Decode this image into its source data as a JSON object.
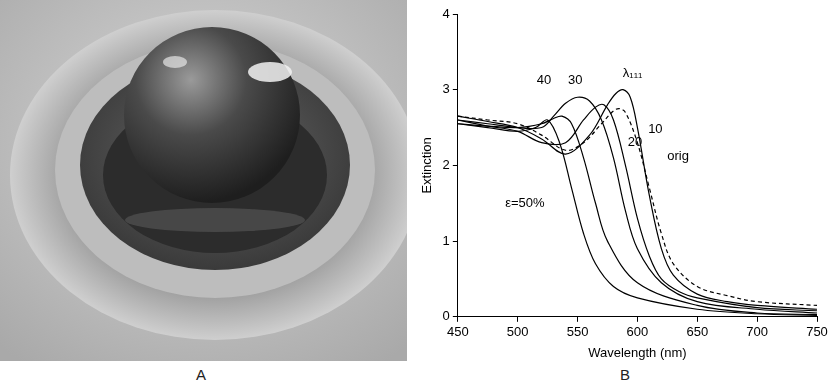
{
  "panel_labels": [
    "A",
    "B"
  ],
  "chart_data": {
    "type": "line",
    "x_label": "Wavelength (nm)",
    "y_label": "Extinction",
    "xlim": [
      450,
      750
    ],
    "xticks": [
      450,
      500,
      550,
      600,
      650,
      700,
      750
    ],
    "ylim": [
      0,
      4
    ],
    "yticks": [
      0,
      1,
      2,
      3,
      4
    ],
    "grid": false,
    "series": [
      {
        "name": "orig",
        "color": "#000000",
        "line_style": "dashed",
        "x": [
          450,
          475,
          500,
          520,
          540,
          555,
          570,
          580,
          585,
          590,
          600,
          610,
          620,
          630,
          650,
          675,
          700,
          750
        ],
        "values": [
          2.65,
          2.6,
          2.55,
          2.4,
          2.2,
          2.3,
          2.55,
          2.72,
          2.75,
          2.7,
          2.3,
          1.7,
          1.1,
          0.7,
          0.4,
          0.28,
          0.2,
          0.15
        ]
      },
      {
        "name": "10",
        "color": "#000000",
        "line_style": "solid",
        "x": [
          450,
          475,
          500,
          520,
          540,
          560,
          575,
          582,
          588,
          594,
          600,
          610,
          620,
          630,
          650,
          675,
          700,
          750
        ],
        "values": [
          2.65,
          2.58,
          2.5,
          2.35,
          2.15,
          2.4,
          2.8,
          2.95,
          3.0,
          2.9,
          2.5,
          1.6,
          0.9,
          0.55,
          0.3,
          0.2,
          0.15,
          0.1
        ]
      },
      {
        "name": "20",
        "color": "#000000",
        "line_style": "solid",
        "x": [
          450,
          475,
          500,
          520,
          540,
          555,
          565,
          572,
          580,
          590,
          600,
          610,
          620,
          635,
          650,
          700,
          750
        ],
        "values": [
          2.6,
          2.52,
          2.45,
          2.3,
          2.3,
          2.6,
          2.77,
          2.8,
          2.6,
          2.0,
          1.3,
          0.8,
          0.5,
          0.33,
          0.25,
          0.12,
          0.08
        ]
      },
      {
        "name": "30",
        "color": "#000000",
        "line_style": "solid",
        "x": [
          450,
          475,
          500,
          520,
          530,
          540,
          550,
          560,
          570,
          580,
          590,
          600,
          620,
          650,
          700,
          750
        ],
        "values": [
          2.6,
          2.55,
          2.5,
          2.5,
          2.65,
          2.82,
          2.9,
          2.85,
          2.6,
          2.1,
          1.4,
          0.9,
          0.45,
          0.2,
          0.1,
          0.05
        ]
      },
      {
        "name": "40",
        "color": "#000000",
        "line_style": "solid",
        "x": [
          450,
          475,
          500,
          520,
          530,
          537,
          545,
          555,
          565,
          575,
          600,
          650,
          700,
          750
        ],
        "values": [
          2.55,
          2.52,
          2.5,
          2.55,
          2.62,
          2.65,
          2.55,
          2.1,
          1.5,
          1.0,
          0.45,
          0.15,
          0.05,
          0.03
        ]
      },
      {
        "name": "ε=50%",
        "color": "#000000",
        "line_style": "solid",
        "x": [
          450,
          475,
          500,
          515,
          525,
          535,
          545,
          555,
          565,
          580,
          600,
          650,
          700,
          750
        ],
        "values": [
          2.55,
          2.5,
          2.45,
          2.5,
          2.6,
          2.3,
          1.7,
          1.1,
          0.7,
          0.4,
          0.25,
          0.1,
          0.04,
          0.02
        ]
      }
    ],
    "annotations": [
      {
        "text": "λ₁₁₁",
        "x": 596,
        "y": 3.22
      },
      {
        "text": "orig",
        "x": 634,
        "y": 2.12
      },
      {
        "text": "10",
        "x": 615,
        "y": 2.48
      },
      {
        "text": "20",
        "x": 598,
        "y": 2.3
      },
      {
        "text": "30",
        "x": 548,
        "y": 3.12
      },
      {
        "text": "40",
        "x": 522,
        "y": 3.12
      },
      {
        "text": "ε=50%",
        "x": 506,
        "y": 1.5
      }
    ]
  }
}
